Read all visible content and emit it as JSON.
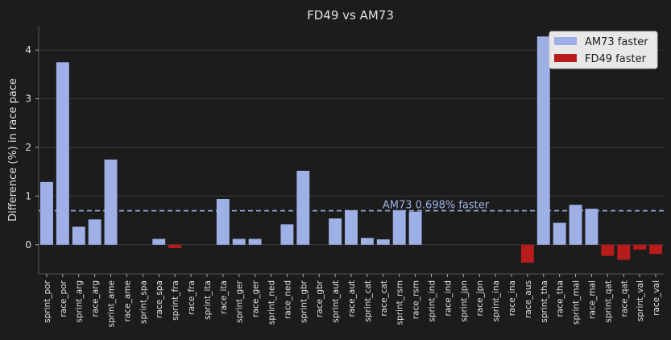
{
  "chart_data": {
    "type": "bar",
    "title": "FD49 vs AM73",
    "xlabel": "",
    "ylabel": "Difference (%) in race pace",
    "ylim": [
      -0.6,
      4.5
    ],
    "yticks": [
      0,
      1,
      2,
      3,
      4
    ],
    "grid": true,
    "legend_position": "top-right",
    "categories": [
      "sprint_por",
      "race_por",
      "sprint_arg",
      "race_arg",
      "sprint_ame",
      "race_ame",
      "sprint_spa",
      "race_spa",
      "sprint_fra",
      "race_fra",
      "sprint_ita",
      "race_ita",
      "sprint_ger",
      "race_ger",
      "sprint_ned",
      "race_ned",
      "sprint_gbr",
      "race_gbr",
      "sprint_aut",
      "race_aut",
      "sprint_cat",
      "race_cat",
      "sprint_rsm",
      "race_rsm",
      "sprint_ind",
      "race_ind",
      "sprint_jpn",
      "race_jpn",
      "sprint_ina",
      "race_ina",
      "race_aus",
      "sprint_tha",
      "race_tha",
      "sprint_mal",
      "race_mal",
      "sprint_qat",
      "race_qat",
      "sprint_val",
      "race_val"
    ],
    "values": [
      1.29,
      3.75,
      0.37,
      0.52,
      1.75,
      0,
      0,
      0.12,
      -0.07,
      0,
      0,
      0.94,
      0.12,
      0.12,
      0,
      0.42,
      1.52,
      0,
      0.54,
      0.71,
      0.14,
      0.11,
      0.71,
      0.68,
      0,
      0,
      0,
      0,
      0,
      0,
      -0.37,
      4.28,
      0.45,
      0.82,
      0.74,
      -0.23,
      -0.31,
      -0.1,
      -0.19
    ],
    "series": [
      {
        "name": "AM73 faster",
        "color": "#9fb0e6"
      },
      {
        "name": "FD49 faster",
        "color": "#b81b1b"
      }
    ],
    "reference_line": {
      "value": 0.698,
      "label": "AM73 0.698% faster",
      "color": "#9fb0e6"
    }
  },
  "colors": {
    "background": "#1c1c1c",
    "grid": "#3a3a3a",
    "text": "#e0e0e0",
    "legend_bg": "#e8e8e8"
  }
}
